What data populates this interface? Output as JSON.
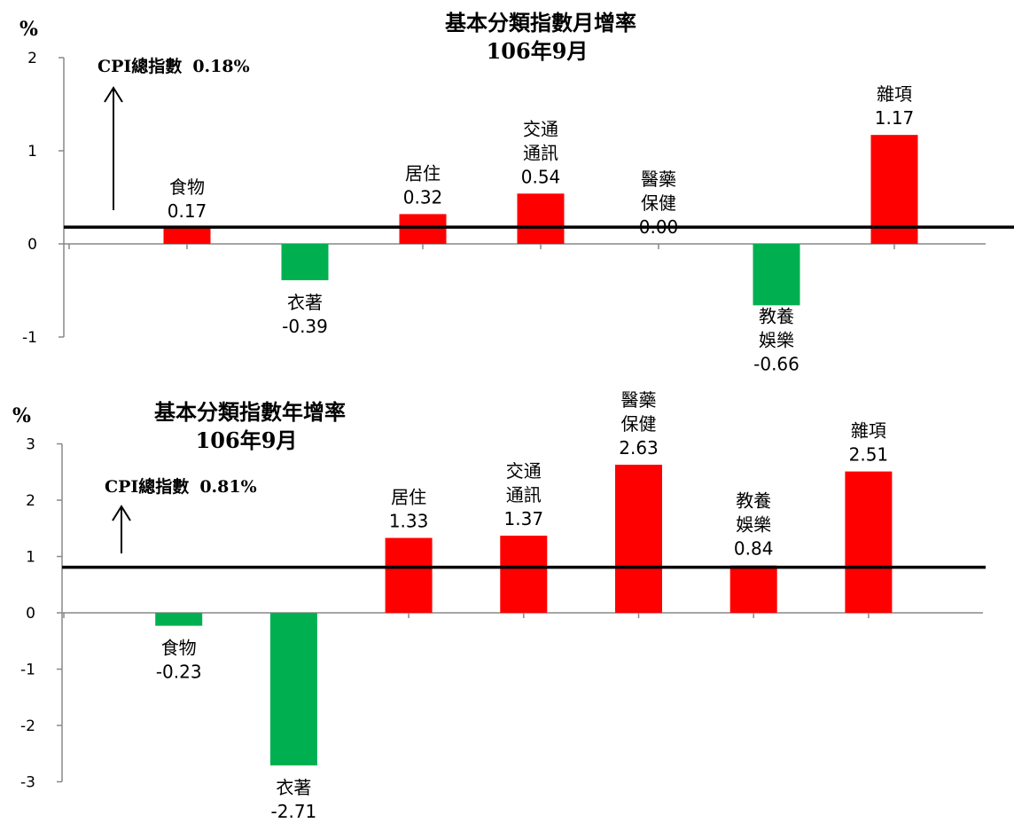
{
  "chart_data": [
    {
      "type": "bar",
      "title": "基本分類指數月增率",
      "subtitle": "106年9月",
      "ylabel": "%",
      "ylim": [
        -1,
        2
      ],
      "yticks": [
        "2",
        "1",
        "0",
        "-1"
      ],
      "reference": {
        "label": "CPI總指數",
        "value_label": "0.18%",
        "value": 0.18
      },
      "categories": [
        {
          "name": [
            "食物"
          ],
          "value": 0.17,
          "value_label": "0.17"
        },
        {
          "name": [
            "衣著"
          ],
          "value": -0.39,
          "value_label": "-0.39"
        },
        {
          "name": [
            "居住"
          ],
          "value": 0.32,
          "value_label": "0.32"
        },
        {
          "name": [
            "交通",
            "通訊"
          ],
          "value": 0.54,
          "value_label": "0.54"
        },
        {
          "name": [
            "醫藥",
            "保健"
          ],
          "value": 0.0,
          "value_label": "0.00"
        },
        {
          "name": [
            "教養",
            "娛樂"
          ],
          "value": -0.66,
          "value_label": "-0.66"
        },
        {
          "name": [
            "雜項"
          ],
          "value": 1.17,
          "value_label": "1.17"
        }
      ],
      "colors": {
        "positive": "#ff0000",
        "negative": "#00b050",
        "reference": "#000000"
      }
    },
    {
      "type": "bar",
      "title": "基本分類指數年增率",
      "subtitle": "106年9月",
      "ylabel": "%",
      "ylim": [
        -3,
        3
      ],
      "yticks": [
        "3",
        "2",
        "1",
        "0",
        "-1",
        "-2",
        "-3"
      ],
      "reference": {
        "label": "CPI總指數",
        "value_label": "0.81%",
        "value": 0.81
      },
      "categories": [
        {
          "name": [
            "食物"
          ],
          "value": -0.23,
          "value_label": "-0.23"
        },
        {
          "name": [
            "衣著"
          ],
          "value": -2.71,
          "value_label": "-2.71"
        },
        {
          "name": [
            "居住"
          ],
          "value": 1.33,
          "value_label": "1.33"
        },
        {
          "name": [
            "交通",
            "通訊"
          ],
          "value": 1.37,
          "value_label": "1.37"
        },
        {
          "name": [
            "醫藥",
            "保健"
          ],
          "value": 2.63,
          "value_label": "2.63"
        },
        {
          "name": [
            "教養",
            "娛樂"
          ],
          "value": 0.84,
          "value_label": "0.84"
        },
        {
          "name": [
            "雜項"
          ],
          "value": 2.51,
          "value_label": "2.51"
        }
      ],
      "colors": {
        "positive": "#ff0000",
        "negative": "#00b050",
        "reference": "#000000"
      }
    }
  ]
}
